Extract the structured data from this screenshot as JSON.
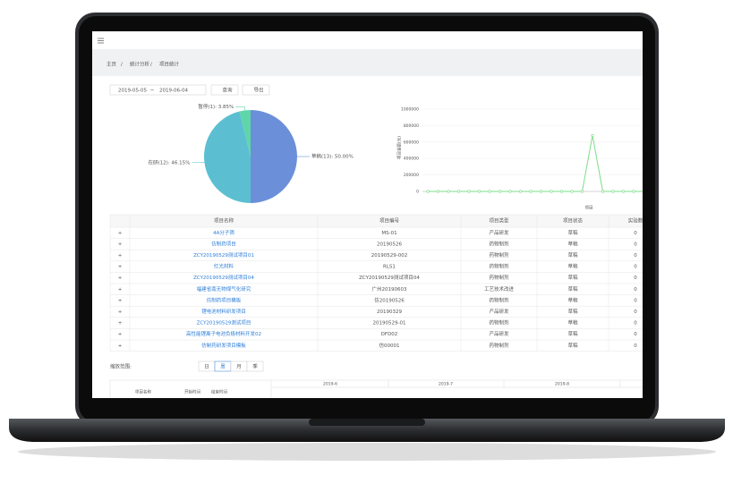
{
  "breadcrumb": [
    "主页",
    "统计分析",
    "项目统计"
  ],
  "filter": {
    "start_date": "2019-05-05",
    "separator": "~",
    "end_date": "2019-06-04",
    "query_button": "查询",
    "export_button": "导出"
  },
  "chart_data": [
    {
      "type": "pie",
      "categories": [
        "草稿",
        "在研",
        "暂停"
      ],
      "values": [
        50.0,
        46.15,
        3.85
      ],
      "value_labels": [
        "草稿(13): 50.00%",
        "在研(12): 46.15%",
        "暂停(1): 3.85%"
      ],
      "colors": [
        "#6b8fd9",
        "#5bbfd1",
        "#5fd6a9"
      ]
    },
    {
      "type": "line",
      "y_label": "项目金额(元)",
      "x_label": "项目",
      "x": [
        null,
        null,
        null,
        null,
        null,
        null,
        null,
        null,
        null,
        null,
        null,
        null,
        null,
        null,
        null,
        null,
        null,
        null,
        null,
        null,
        null,
        null
      ],
      "series": [
        {
          "color": "#7ddc8a",
          "values": [
            0,
            0,
            0,
            0,
            0,
            0,
            0,
            0,
            0,
            0,
            0,
            0,
            0,
            0,
            0,
            0,
            680000,
            0,
            0,
            0,
            0,
            0
          ]
        }
      ],
      "ylim": [
        0,
        1000000
      ],
      "yticks": [
        0,
        200000,
        400000,
        600000,
        800000,
        1000000
      ],
      "grid": true
    }
  ],
  "table": {
    "columns": [
      "项目名称",
      "项目编号",
      "项目类型",
      "项目状态",
      "实验数"
    ],
    "rows": [
      [
        "4A分子筛",
        "MS-01",
        "产品研发",
        "草稿",
        "0"
      ],
      [
        "仿制药项目",
        "20190526",
        "药物制剂",
        "草稿",
        "0"
      ],
      [
        "ZCY20190529测试项目01",
        "20190529-002",
        "药物制剂",
        "草稿",
        "0"
      ],
      [
        "红光材料",
        "RLS1",
        "药物制剂",
        "草稿",
        "0"
      ],
      [
        "ZCY20190529测试项目04",
        "ZCY20190529测试项目04",
        "药物制剂",
        "草稿",
        "0"
      ],
      [
        "福建省南无物煤气化研究",
        "广州20190603",
        "工艺技术改进",
        "草稿",
        "0"
      ],
      [
        "仿制药项目模板",
        "仿20190526",
        "药物制剂",
        "草稿",
        "0"
      ],
      [
        "锂电池材料研发项目",
        "20190329",
        "产品研发",
        "草稿",
        "0"
      ],
      [
        "ZCY20190529测试项目",
        "20190529-01",
        "药物制剂",
        "草稿",
        "0"
      ],
      [
        "高性能锂离子电池负极材料开发02",
        "DFD02",
        "产品研发",
        "草稿",
        "0"
      ],
      [
        "仿制药研发项目模板",
        "仿00001",
        "药物制剂",
        "草稿",
        "0"
      ]
    ]
  },
  "gantt": {
    "zoom_label": "缩放范围:",
    "zoom_options": [
      "日",
      "周",
      "月",
      "季"
    ],
    "columns": [
      "项目名称",
      "开始时间",
      "结束时间"
    ],
    "months": [
      "2019-6",
      "2019-7",
      "2019-8"
    ]
  }
}
